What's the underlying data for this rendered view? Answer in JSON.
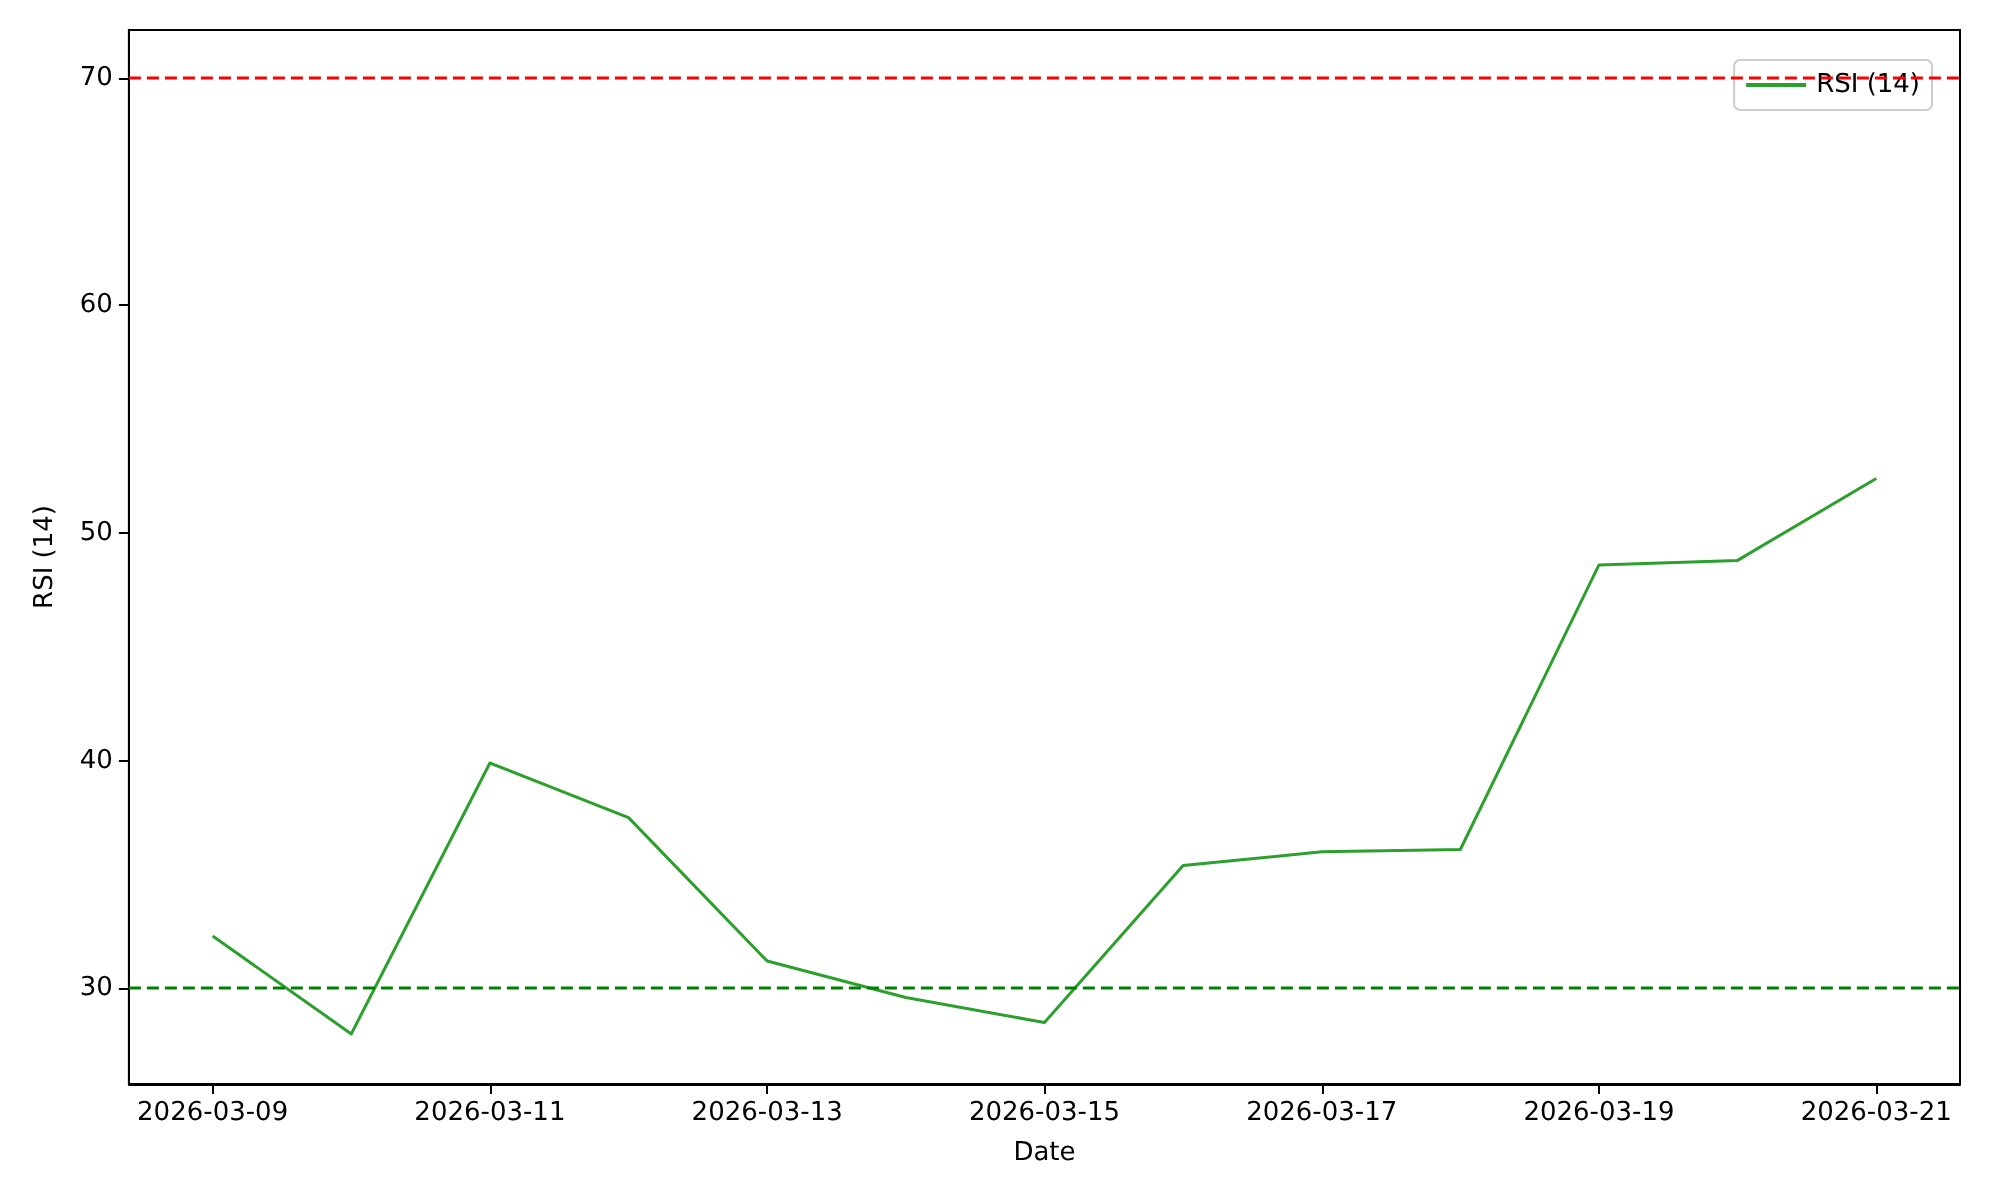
{
  "chart_data": {
    "type": "line",
    "xlabel": "Date",
    "ylabel": "RSI (14)",
    "x": [
      "2026-03-09",
      "2026-03-10",
      "2026-03-11",
      "2026-03-12",
      "2026-03-13",
      "2026-03-14",
      "2026-03-15",
      "2026-03-16",
      "2026-03-17",
      "2026-03-18",
      "2026-03-19",
      "2026-03-20",
      "2026-03-21"
    ],
    "series": [
      {
        "name": "RSI (14)",
        "color": "#2ca02c",
        "values": [
          32.3,
          28.0,
          39.9,
          37.5,
          31.2,
          29.6,
          28.5,
          35.4,
          36.0,
          36.1,
          48.6,
          48.8,
          52.4
        ]
      }
    ],
    "xlim": [
      "2026-03-08T09:30",
      "2026-03-21T14:30"
    ],
    "xticks": [
      "2026-03-09",
      "2026-03-11",
      "2026-03-13",
      "2026-03-15",
      "2026-03-17",
      "2026-03-19",
      "2026-03-21"
    ],
    "ylim": [
      25.8,
      72.1
    ],
    "yticks": [
      30,
      40,
      50,
      60,
      70
    ],
    "ref_lines": [
      {
        "axis": "y",
        "value": 70,
        "color": "#ff0000",
        "line_style": "dashed"
      },
      {
        "axis": "y",
        "value": 30,
        "color": "#008000",
        "line_style": "dashed"
      }
    ],
    "legend": "top right",
    "grid": false,
    "marker": "none",
    "line_style": "solid"
  }
}
